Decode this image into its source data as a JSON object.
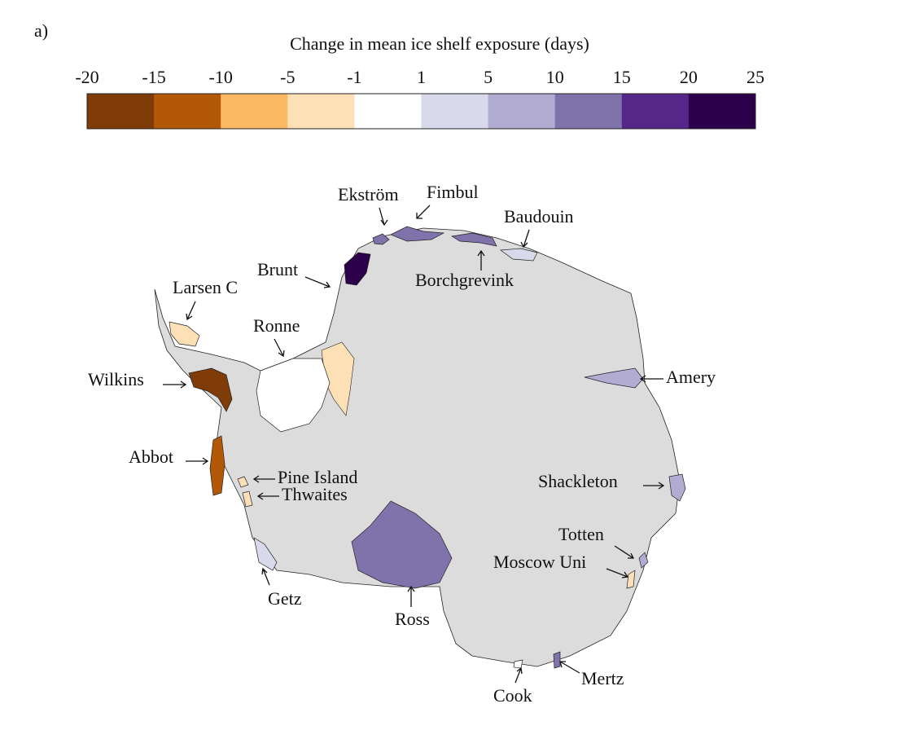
{
  "panel_label": "a)",
  "colorbar": {
    "title": "Change in mean ice shelf exposure (days)",
    "ticks": [
      -20,
      -15,
      -10,
      -5,
      -1,
      1,
      5,
      10,
      15,
      20,
      25
    ],
    "colors": [
      "#7f3b08",
      "#b35806",
      "#fdb863",
      "#fee0b6",
      "#ffffff",
      "#d8daeb",
      "#b2abd2",
      "#8073ac",
      "#542788",
      "#2d004b"
    ]
  },
  "shelves": [
    {
      "name": "Ekström",
      "color": "#8073ac"
    },
    {
      "name": "Fimbul",
      "color": "#8073ac"
    },
    {
      "name": "Baudouin",
      "color": "#d8daeb"
    },
    {
      "name": "Borchgrevink",
      "color": "#8073ac"
    },
    {
      "name": "Brunt",
      "color": "#2d004b"
    },
    {
      "name": "Larsen C",
      "color": "#fee0b6"
    },
    {
      "name": "Ronne",
      "color": "#ffffff"
    },
    {
      "name": "Wilkins",
      "color": "#7f3b08"
    },
    {
      "name": "Abbot",
      "color": "#b35806"
    },
    {
      "name": "Pine Island",
      "color": "#fee0b6"
    },
    {
      "name": "Thwaites",
      "color": "#fee0b6"
    },
    {
      "name": "Shackleton",
      "color": "#b2abd2"
    },
    {
      "name": "Totten",
      "color": "#b2abd2"
    },
    {
      "name": "Moscow Uni",
      "color": "#fee0b6"
    },
    {
      "name": "Amery",
      "color": "#b2abd2"
    },
    {
      "name": "Getz",
      "color": "#d8daeb"
    },
    {
      "name": "Ross",
      "color": "#8073ac"
    },
    {
      "name": "Cook",
      "color": "#ffffff"
    },
    {
      "name": "Mertz",
      "color": "#8073ac"
    }
  ]
}
